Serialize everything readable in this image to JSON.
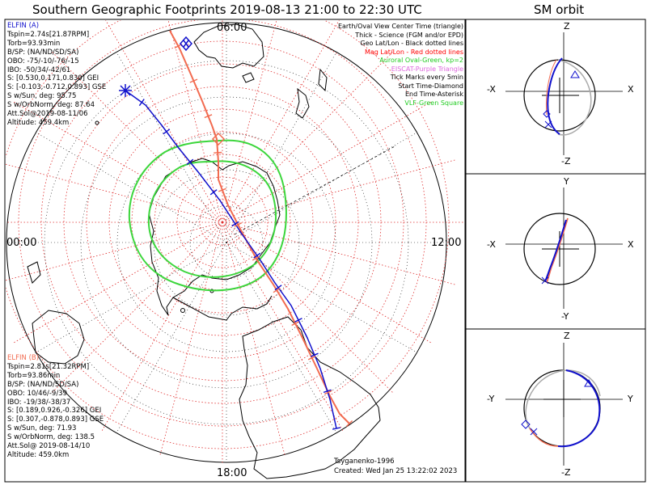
{
  "title": "Southern Geographic Footprints 2019-08-13 21:00 to 22:30 UTC",
  "sm_title": "SM orbit",
  "mlt_labels": {
    "top": "06:00",
    "left": "00:00",
    "right": "12:00",
    "bottom": "18:00"
  },
  "elfin_a": {
    "name": "ELFIN (A)",
    "lines": [
      "Tspin=2.74s[21.87RPM]",
      "Torb=93.93min",
      "B/SP: (NA/ND/SD/SA)",
      "OBO: -75/-10/-76/-15",
      "IBO: -50/34/-42/61",
      "S: [0.530,0.171,0.830] GEI",
      "S: [-0.103,-0.712,0.893] GSE",
      "S w/Sun, deg: 95.75",
      "S w/OrbNorm, deg: 87.64",
      "Att.Sol@2019-08-11/06",
      "Altitude: 459.4km"
    ],
    "color": "#1010cc"
  },
  "elfin_b": {
    "name": "ELFIN (B)",
    "lines": [
      "Tspin=2.81s[21.32RPM]",
      "Torb=93.86min",
      "B/SP: (NA/ND/SD/SA)",
      "OBO: 10/46/-9/39",
      "IBO: -19/38/-38/37",
      "S: [0.189,0.926,-0.326] GEI",
      "S: [0.307,-0.878,0.893] GSE",
      "S w/Sun, deg: 71.93",
      "S w/OrbNorm, deg: 138.5",
      "Att.Sol@ 2019-08-14/10",
      "Altitude: 459.0km"
    ],
    "color": "#f26b50"
  },
  "legend": [
    {
      "text": "Earth/Oval View Center Time (triangle)",
      "color": "#000000"
    },
    {
      "text": "Thick - Science (FGM and/or EPD)",
      "color": "#000000"
    },
    {
      "text": "Geo Lat/Lon - Black dotted lines",
      "color": "#000000"
    },
    {
      "text": "Mag Lat/Lon - Red dotted lines",
      "color": "#ff0000"
    },
    {
      "text": "Auroral Oval-Green, kp=2",
      "color": "#22cc22"
    },
    {
      "text": "EISCAT-Purple Triangle",
      "color": "#dd66dd"
    },
    {
      "text": "Tick Marks every 5min",
      "color": "#000000"
    },
    {
      "text": "Start Time-Diamond",
      "color": "#000000"
    },
    {
      "text": "End Time-Asterisk",
      "color": "#000000"
    },
    {
      "text": "VLF-Green Square",
      "color": "#22cc22"
    }
  ],
  "credits": {
    "author": "Tsyganenko-1996",
    "created": "Created: Wed Jan 25 13:22:02 2023"
  },
  "panels": [
    {
      "left": "-X",
      "right": "X",
      "top": "Z",
      "bottom": "-Z"
    },
    {
      "left": "-X",
      "right": "X",
      "top": "Y",
      "bottom": "-Y"
    },
    {
      "left": "-Y",
      "right": "Y",
      "top": "Z",
      "bottom": "-Z"
    }
  ],
  "chart_data": {
    "type": "polar-map",
    "projection": "south polar stereographic",
    "time_range": [
      "2019-08-13 21:00",
      "2019-08-13 22:30"
    ],
    "tick_interval_min": 5,
    "kp": 2,
    "series": [
      {
        "name": "ELFIN (A)",
        "color": "#1010cc"
      },
      {
        "name": "ELFIN (B)",
        "color": "#f26b50"
      }
    ]
  }
}
